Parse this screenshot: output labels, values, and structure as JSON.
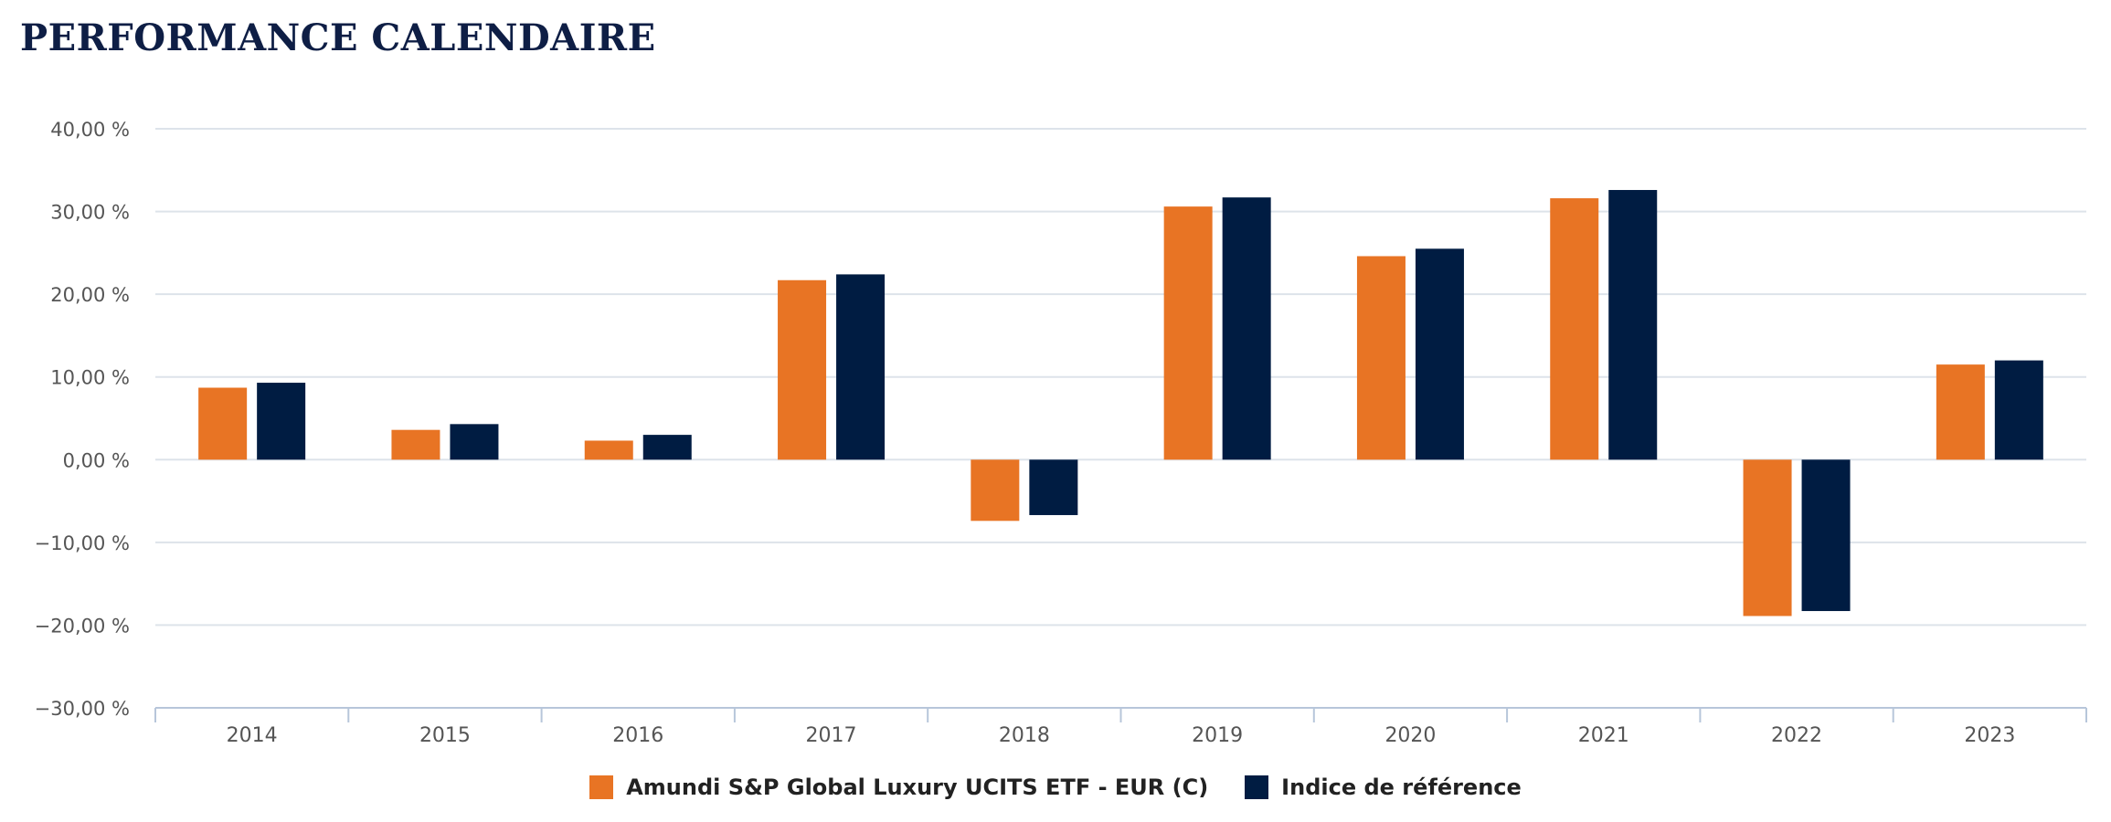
{
  "title": "PERFORMANCE CALENDAIRE",
  "colors": {
    "fund": "#e87424",
    "index": "#001c42",
    "grid": "#dde3ea",
    "axis": "#b7c6da",
    "tick_text": "#555555",
    "title": "#0e1e45"
  },
  "legend": {
    "fund_label": "Amundi S&P Global Luxury UCITS ETF - EUR (C)",
    "index_label": "Indice de référence"
  },
  "chart_data": {
    "type": "bar",
    "title": "PERFORMANCE CALENDAIRE",
    "xlabel": "",
    "ylabel": "",
    "categories": [
      "2014",
      "2015",
      "2016",
      "2017",
      "2018",
      "2019",
      "2020",
      "2021",
      "2022",
      "2023"
    ],
    "series": [
      {
        "name": "Amundi S&P Global Luxury UCITS ETF - EUR (C)",
        "values": [
          8.7,
          3.6,
          2.3,
          21.7,
          -7.4,
          30.6,
          24.6,
          31.6,
          -18.9,
          11.5
        ]
      },
      {
        "name": "Indice de référence",
        "values": [
          9.3,
          4.3,
          3.0,
          22.4,
          -6.7,
          31.7,
          25.5,
          32.6,
          -18.3,
          12.0
        ]
      }
    ],
    "ylim": [
      -30,
      40
    ],
    "yticks": [
      40,
      30,
      20,
      10,
      0,
      -10,
      -20,
      -30
    ],
    "ytick_labels": [
      "40,00 %",
      "30,00 %",
      "20,00 %",
      "10,00 %",
      "0,00 %",
      "−10,00 %",
      "−20,00 %",
      "−30,00 %"
    ],
    "grid": true,
    "legend_position": "bottom-center"
  }
}
